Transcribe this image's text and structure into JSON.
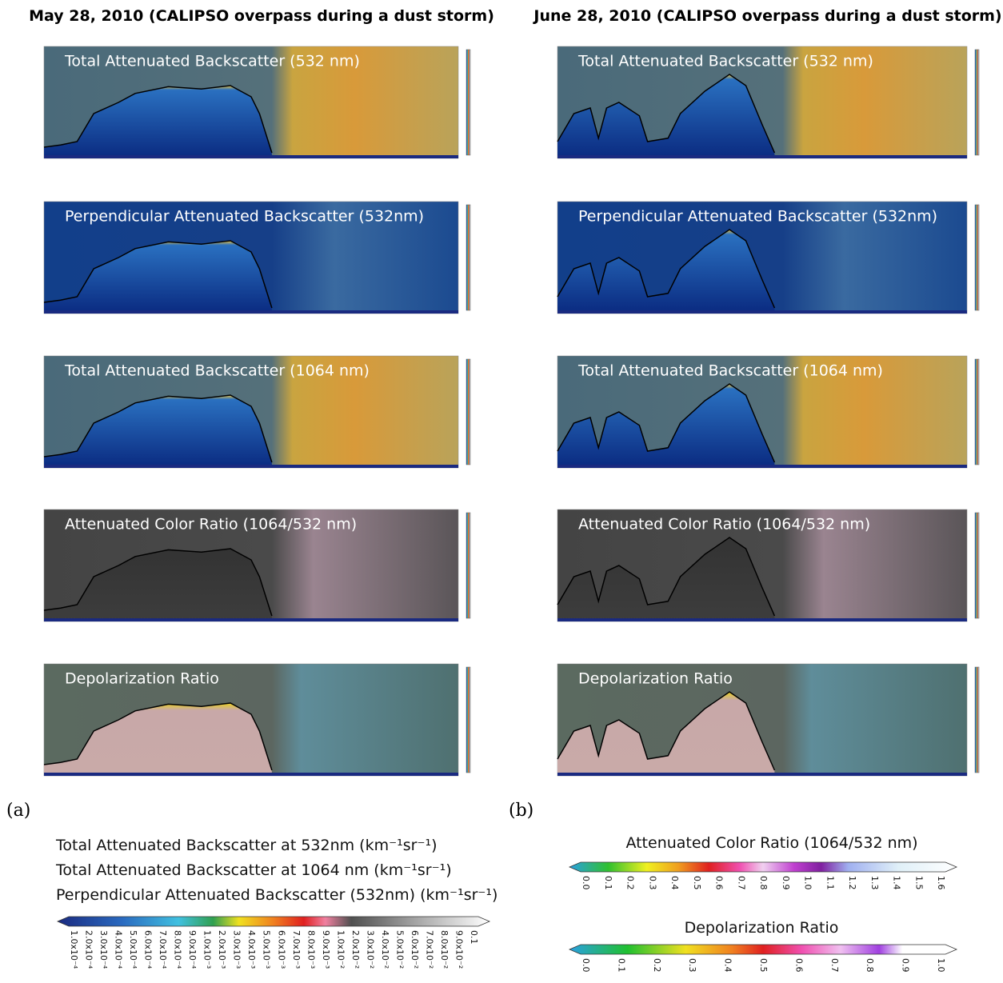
{
  "figure": {
    "panels": [
      {
        "label": "(a)",
        "title": "May 28, 2010 (CALIPSO overpass during a dust storm)",
        "plots": [
          "Total Attenuated Backscatter (532 nm)",
          "Perpendicular Attenuated Backscatter (532nm)",
          "Total Attenuated Backscatter (1064 nm)",
          "Attenuated Color Ratio (1064/532 nm)",
          "Depolarization Ratio"
        ]
      },
      {
        "label": "(b)",
        "title": "June 28, 2010 (CALIPSO overpass during a dust storm)",
        "plots": [
          "Total Attenuated Backscatter (532 nm)",
          "Perpendicular Attenuated Backscatter (532nm)",
          "Total Attenuated Backscatter (1064 nm)",
          "Attenuated Color Ratio (1064/532 nm)",
          "Depolarization Ratio"
        ]
      }
    ],
    "legend": {
      "backscatter": {
        "lines": [
          "Total Attenuated Backscatter at 532nm (km⁻¹sr⁻¹)",
          "Total Attenuated Backscatter at 1064 nm (km⁻¹sr⁻¹)",
          "Perpendicular Attenuated Backscatter (532nm) (km⁻¹sr⁻¹)"
        ],
        "ticks": [
          "1.0x10⁻⁴",
          "2.0x10⁻⁴",
          "3.0x10⁻⁴",
          "4.0x10⁻⁴",
          "5.0x10⁻⁴",
          "6.0x10⁻⁴",
          "7.0x10⁻⁴",
          "8.0x10⁻⁴",
          "9.0x10⁻⁴",
          "1.0x10⁻³",
          "2.0x10⁻³",
          "3.0x10⁻³",
          "4.0x10⁻³",
          "5.0x10⁻³",
          "6.0x10⁻³",
          "7.0x10⁻³",
          "8.0x10⁻³",
          "9.0x10⁻³",
          "1.0x10⁻²",
          "2.0x10⁻²",
          "3.0x10⁻²",
          "4.0x10⁻²",
          "5.0x10⁻²",
          "6.0x10⁻²",
          "7.0x10⁻²",
          "8.0x10⁻²",
          "9.0x10⁻²",
          "0.1"
        ]
      },
      "color_ratio": {
        "title": "Attenuated Color Ratio (1064/532 nm)",
        "ticks": [
          "0.0",
          "0.1",
          "0.2",
          "0.3",
          "0.4",
          "0.5",
          "0.6",
          "0.7",
          "0.8",
          "0.9",
          "1.0",
          "1.1",
          "1.2",
          "1.3",
          "1.4",
          "1.5",
          "1.6"
        ]
      },
      "depolarization": {
        "title": "Depolarization Ratio",
        "ticks": [
          "0.0",
          "0.1",
          "0.2",
          "0.3",
          "0.4",
          "0.5",
          "0.6",
          "0.7",
          "0.8",
          "0.9",
          "1.0"
        ]
      }
    }
  }
}
